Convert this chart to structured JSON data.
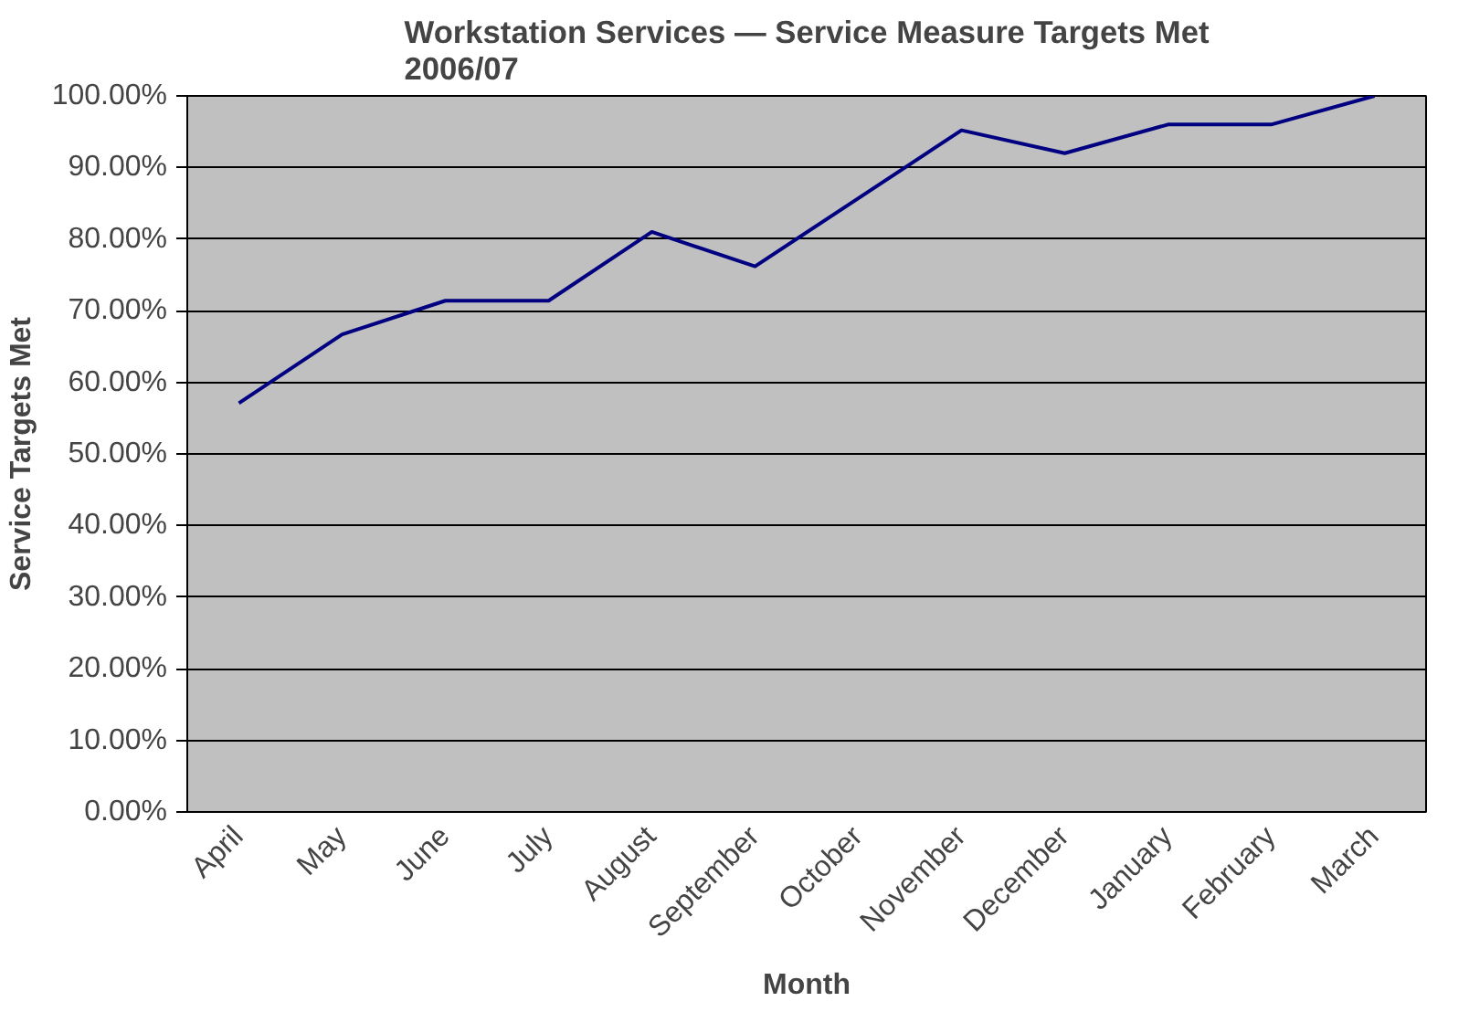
{
  "chart_data": {
    "type": "line",
    "title": "Workstation Services — Service Measure Targets Met\n2006/07",
    "xlabel": "Month",
    "ylabel": "Service Targets Met",
    "categories": [
      "April",
      "May",
      "June",
      "July",
      "August",
      "September",
      "October",
      "November",
      "December",
      "January",
      "February",
      "March"
    ],
    "series": [
      {
        "color": "#000080",
        "values": [
          57.1,
          66.7,
          71.4,
          71.4,
          81.0,
          76.2,
          85.7,
          95.2,
          92.0,
          96.0,
          96.0,
          100.0
        ]
      }
    ],
    "ylim": [
      0,
      100
    ],
    "yticks": [
      {
        "value": 0,
        "label": "0.00%"
      },
      {
        "value": 10,
        "label": "10.00%"
      },
      {
        "value": 20,
        "label": "20.00%"
      },
      {
        "value": 30,
        "label": "30.00%"
      },
      {
        "value": 40,
        "label": "40.00%"
      },
      {
        "value": 50,
        "label": "50.00%"
      },
      {
        "value": 60,
        "label": "60.00%"
      },
      {
        "value": 70,
        "label": "70.00%"
      },
      {
        "value": 80,
        "label": "80.00%"
      },
      {
        "value": 90,
        "label": "90.00%"
      },
      {
        "value": 100,
        "label": "100.00%"
      }
    ],
    "grid": "y",
    "marker": "none",
    "line_style": "solid"
  }
}
